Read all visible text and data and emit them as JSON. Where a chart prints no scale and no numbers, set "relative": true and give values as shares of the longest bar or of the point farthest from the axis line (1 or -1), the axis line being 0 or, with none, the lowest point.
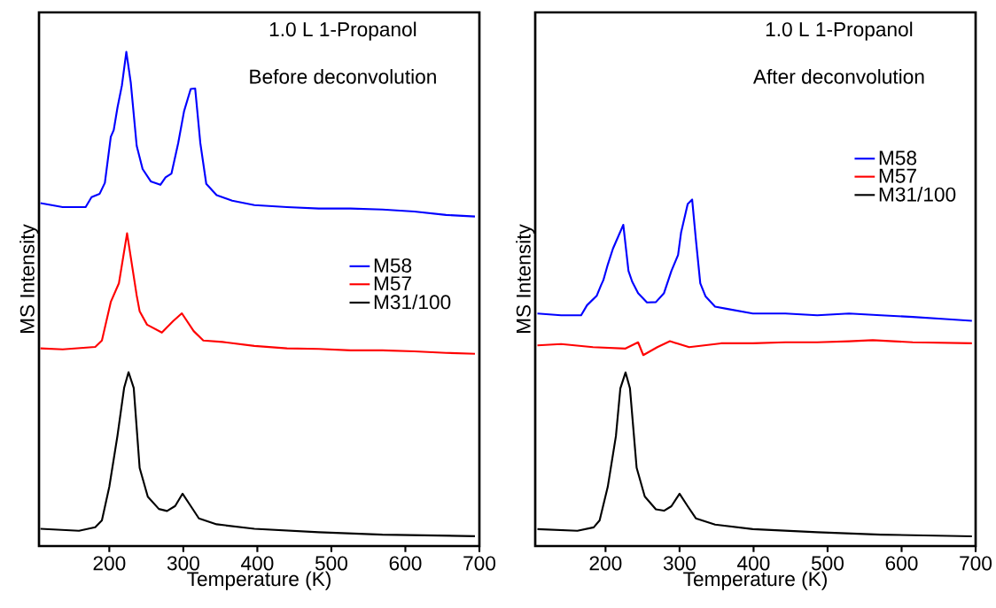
{
  "chart_data": [
    {
      "type": "line",
      "relative": true,
      "xlabel": "Temperature (K)",
      "ylabel": "MS Intensity",
      "xlim": [
        105,
        700
      ],
      "xticks": [
        200,
        300,
        400,
        500,
        600,
        700
      ],
      "legend": "right",
      "annotations": [
        "1.0 L   1-Propanol",
        "Before deconvolution"
      ],
      "series": [
        {
          "name": "M58",
          "color": "#0000ff",
          "x": [
            107,
            137,
            168,
            176,
            187,
            194,
            202,
            206,
            211,
            217,
            223,
            229,
            237,
            245,
            256,
            269,
            276,
            284,
            293,
            301,
            310,
            316,
            323,
            331,
            345,
            366,
            396,
            440,
            483,
            526,
            569,
            612,
            655,
            694
          ],
          "values": [
            0.694,
            0.686,
            0.686,
            0.706,
            0.713,
            0.735,
            0.828,
            0.842,
            0.887,
            0.932,
            1.0,
            0.938,
            0.81,
            0.763,
            0.738,
            0.731,
            0.746,
            0.754,
            0.815,
            0.88,
            0.925,
            0.926,
            0.815,
            0.733,
            0.71,
            0.699,
            0.69,
            0.686,
            0.683,
            0.683,
            0.681,
            0.677,
            0.67,
            0.667
          ]
        },
        {
          "name": "M57",
          "color": "#ff0000",
          "x": [
            107,
            137,
            181,
            190,
            202,
            213,
            224,
            237,
            241,
            251,
            271,
            286,
            298,
            314,
            327,
            353,
            396,
            440,
            483,
            526,
            569,
            612,
            655,
            694
          ],
          "values": [
            0.4,
            0.398,
            0.403,
            0.416,
            0.494,
            0.532,
            0.633,
            0.507,
            0.475,
            0.448,
            0.432,
            0.455,
            0.471,
            0.435,
            0.416,
            0.413,
            0.405,
            0.4,
            0.399,
            0.396,
            0.396,
            0.394,
            0.391,
            0.389
          ]
        },
        {
          "name": "M31/100",
          "color": "#000000",
          "x": [
            107,
            159,
            181,
            190,
            200,
            211,
            220,
            226,
            233,
            241,
            252,
            267,
            278,
            289,
            299,
            310,
            321,
            345,
            396,
            483,
            569,
            694
          ],
          "values": [
            0.035,
            0.031,
            0.038,
            0.052,
            0.12,
            0.223,
            0.32,
            0.352,
            0.32,
            0.158,
            0.1,
            0.075,
            0.071,
            0.081,
            0.106,
            0.081,
            0.056,
            0.044,
            0.035,
            0.028,
            0.023,
            0.02
          ]
        }
      ]
    },
    {
      "type": "line",
      "relative": true,
      "xlabel": "Temperature (K)",
      "ylabel": "MS Intensity",
      "xlim": [
        105,
        700
      ],
      "xticks": [
        200,
        300,
        400,
        500,
        600,
        700
      ],
      "legend": "top right",
      "annotations": [
        "1.0 L   1-Propanol",
        "After deconvolution"
      ],
      "series": [
        {
          "name": "M58",
          "color": "#0000ff",
          "x": [
            108,
            140,
            167,
            175,
            188,
            194,
            197,
            203,
            210,
            224,
            231,
            236,
            244,
            256,
            268,
            279,
            289,
            298,
            302,
            311,
            317,
            322,
            328,
            335,
            348,
            365,
            399,
            443,
            486,
            529,
            572,
            615,
            659,
            695
          ],
          "values": [
            0.671,
            0.666,
            0.666,
            0.695,
            0.722,
            0.753,
            0.767,
            0.812,
            0.858,
            0.927,
            0.794,
            0.763,
            0.73,
            0.703,
            0.704,
            0.73,
            0.794,
            0.84,
            0.904,
            0.987,
            1.0,
            0.886,
            0.758,
            0.721,
            0.691,
            0.684,
            0.671,
            0.671,
            0.666,
            0.671,
            0.666,
            0.661,
            0.655,
            0.65
          ]
        },
        {
          "name": "M57",
          "color": "#ff0000",
          "x": [
            108,
            140,
            183,
            227,
            244,
            251,
            270,
            287,
            313,
            356,
            399,
            443,
            486,
            529,
            561,
            615,
            695
          ],
          "values": [
            0.579,
            0.583,
            0.574,
            0.57,
            0.588,
            0.551,
            0.574,
            0.591,
            0.574,
            0.585,
            0.585,
            0.588,
            0.588,
            0.591,
            0.594,
            0.588,
            0.585
          ]
        },
        {
          "name": "M31/100",
          "color": "#000000",
          "x": [
            108,
            162,
            184,
            192,
            203,
            214,
            220,
            227,
            233,
            242,
            253,
            268,
            279,
            289,
            300,
            311,
            322,
            348,
            399,
            486,
            572,
            695
          ],
          "values": [
            0.049,
            0.044,
            0.054,
            0.074,
            0.171,
            0.317,
            0.455,
            0.501,
            0.455,
            0.226,
            0.143,
            0.106,
            0.102,
            0.115,
            0.151,
            0.115,
            0.08,
            0.062,
            0.049,
            0.04,
            0.033,
            0.028
          ]
        }
      ]
    }
  ]
}
